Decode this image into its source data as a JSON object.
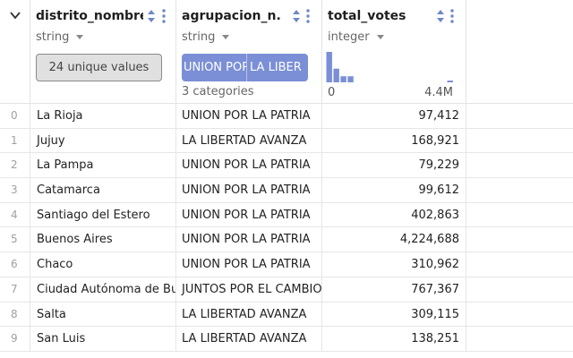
{
  "columns": [
    {
      "name": "distrito_nombre",
      "dtype": "string",
      "summary": "24 unique values"
    },
    {
      "name": "agrupacion_n...",
      "dtype": "string",
      "categories": [
        "UNION POR LA PATRIA",
        "LA LIBERTAD AVANZA"
      ],
      "category_segment_labels": [
        "UNION POR",
        "LA LIBER"
      ],
      "categories_count": "3 categories"
    },
    {
      "name": "total_votes",
      "dtype": "integer",
      "histogram": {
        "min_label": "0",
        "max_label": "4.4M",
        "bin_levels": [
          1.0,
          0.45,
          0.2,
          0.2,
          0,
          0,
          0,
          0,
          0,
          0,
          0,
          0,
          0,
          0,
          0,
          0,
          0,
          0.05
        ]
      }
    }
  ],
  "rows": [
    {
      "index": "0",
      "distrito": "La Rioja",
      "agrupacion": "UNION POR LA PATRIA",
      "votes": "97,412"
    },
    {
      "index": "1",
      "distrito": "Jujuy",
      "agrupacion": "LA LIBERTAD AVANZA",
      "votes": "168,921"
    },
    {
      "index": "2",
      "distrito": "La Pampa",
      "agrupacion": "UNION POR LA PATRIA",
      "votes": "79,229"
    },
    {
      "index": "3",
      "distrito": "Catamarca",
      "agrupacion": "UNION POR LA PATRIA",
      "votes": "99,612"
    },
    {
      "index": "4",
      "distrito": "Santiago del Estero",
      "agrupacion": "UNION POR LA PATRIA",
      "votes": "402,863"
    },
    {
      "index": "5",
      "distrito": "Buenos Aires",
      "agrupacion": "UNION POR LA PATRIA",
      "votes": "4,224,688"
    },
    {
      "index": "6",
      "distrito": "Chaco",
      "agrupacion": "UNION POR LA PATRIA",
      "votes": "310,962"
    },
    {
      "index": "7",
      "distrito": "Ciudad Autónoma de Buenos Aires",
      "agrupacion": "JUNTOS POR EL CAMBIO",
      "votes": "767,367"
    },
    {
      "index": "8",
      "distrito": "Salta",
      "agrupacion": "LA LIBERTAD AVANZA",
      "votes": "309,115"
    },
    {
      "index": "9",
      "distrito": "San Luis",
      "agrupacion": "LA LIBERTAD AVANZA",
      "votes": "138,251"
    }
  ],
  "colors": {
    "accent": "#7b8fd6",
    "icon": "#6e86c9",
    "grid_line": "#e3e3e3",
    "unique_btn_bg": "#e0e0e0"
  },
  "icons": {
    "expander": "chevron-down-icon",
    "sort": "sort-icon",
    "menu": "kebab-menu-icon",
    "dtype_caret": "caret-down-icon"
  }
}
